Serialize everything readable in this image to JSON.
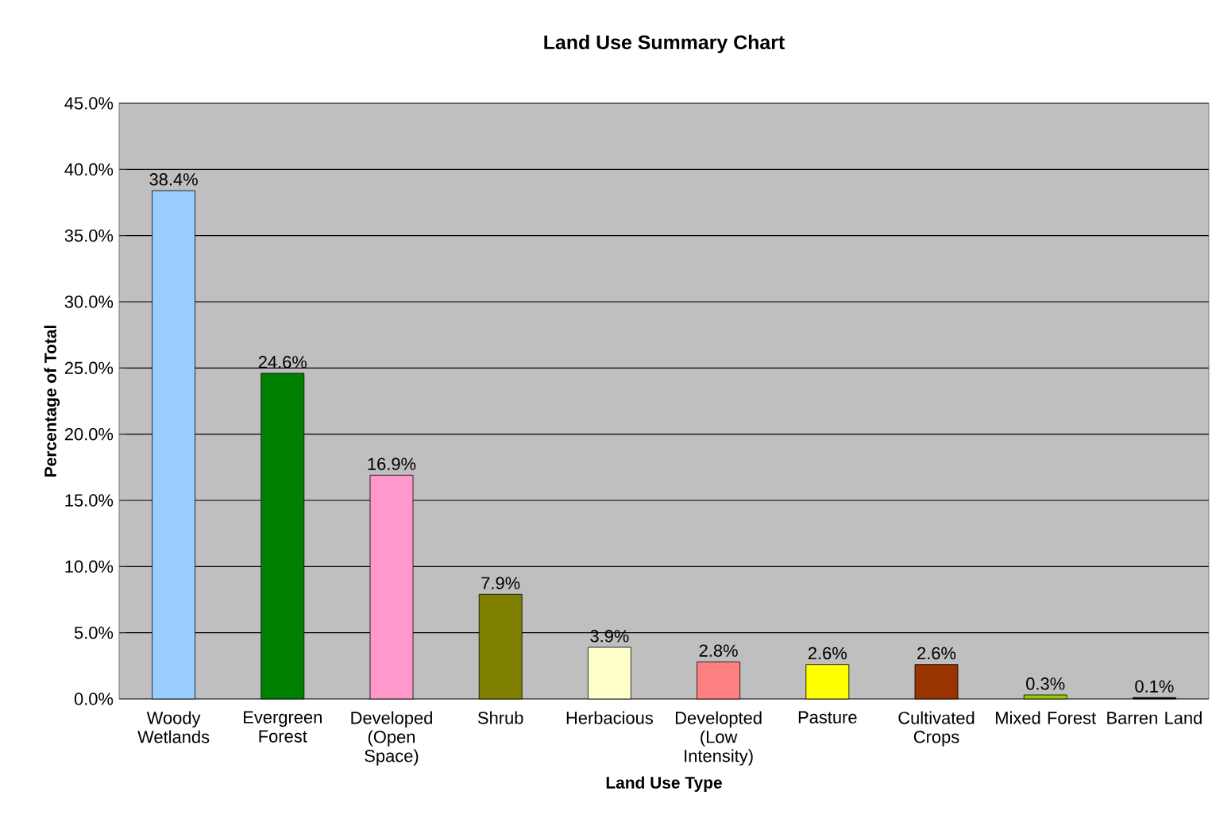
{
  "chart_data": {
    "type": "bar",
    "title": "Land Use Summary Chart",
    "xlabel": "Land Use Type",
    "ylabel": "Percentage of Total",
    "categories": [
      "Woody Wetlands",
      "Evergreen Forest",
      "Developed (Open Space)",
      "Shrub",
      "Herbacious",
      "Developted (Low Intensity)",
      "Pasture",
      "Cultivated Crops",
      "Mixed Forest",
      "Barren Land"
    ],
    "values": [
      38.4,
      24.6,
      16.9,
      7.9,
      3.9,
      2.8,
      2.6,
      2.6,
      0.3,
      0.1
    ],
    "colors": [
      "#99ccff",
      "#008000",
      "#ff99cc",
      "#808000",
      "#ffffcc",
      "#ff8080",
      "#ffff00",
      "#993300",
      "#99cc00",
      "#000000"
    ],
    "value_labels": [
      "38.4%",
      "24.6%",
      "16.9%",
      "7.9%",
      "3.9%",
      "2.8%",
      "2.6%",
      "2.6%",
      "0.3%",
      "0.1%"
    ],
    "ylim": [
      0,
      45
    ],
    "yticks": [
      {
        "value": 0,
        "label": "0.0%"
      },
      {
        "value": 5,
        "label": "5.0%"
      },
      {
        "value": 10,
        "label": "10.0%"
      },
      {
        "value": 15,
        "label": "15.0%"
      },
      {
        "value": 20,
        "label": "20.0%"
      },
      {
        "value": 25,
        "label": "25.0%"
      },
      {
        "value": 30,
        "label": "30.0%"
      },
      {
        "value": 35,
        "label": "35.0%"
      },
      {
        "value": 40,
        "label": "40.0%"
      },
      {
        "value": 45,
        "label": "45.0%"
      }
    ],
    "grid": "y"
  }
}
